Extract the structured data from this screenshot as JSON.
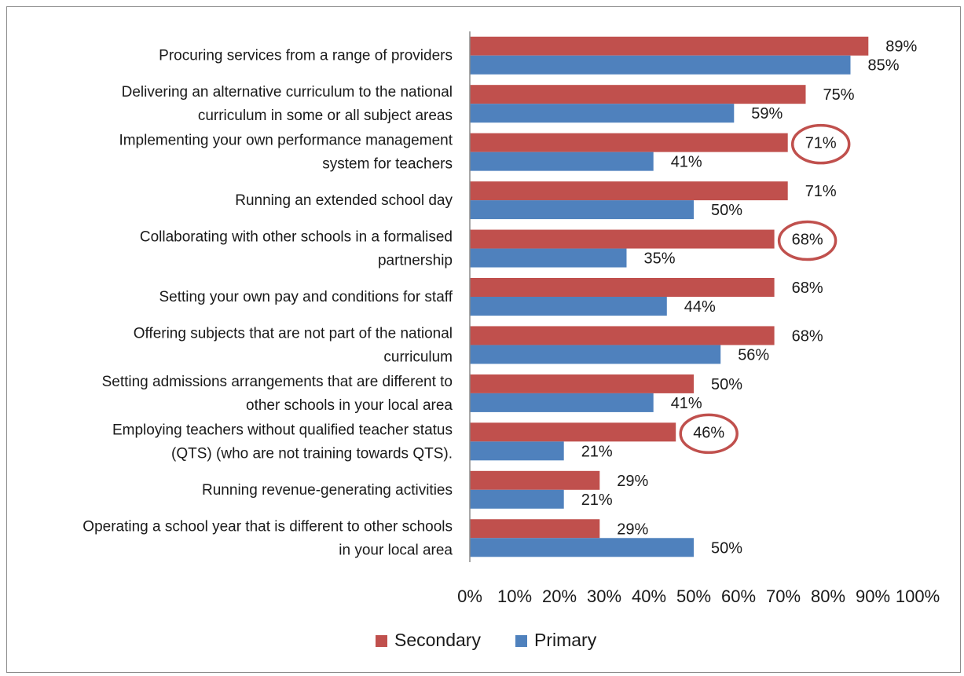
{
  "chart_data": {
    "type": "bar",
    "orientation": "horizontal",
    "title": "",
    "xlabel": "",
    "ylabel": "",
    "xlim": [
      0,
      100
    ],
    "grid": false,
    "legend_position": "bottom",
    "x_ticks": [
      "0%",
      "10%",
      "20%",
      "30%",
      "40%",
      "50%",
      "60%",
      "70%",
      "80%",
      "90%",
      "100%"
    ],
    "categories": [
      [
        "Procuring services from a range of providers"
      ],
      [
        "Delivering an alternative curriculum to the national",
        "curriculum in some or all subject areas"
      ],
      [
        "Implementing your own performance management",
        "system for teachers"
      ],
      [
        "Running an extended school day"
      ],
      [
        "Collaborating with other schools in a formalised",
        "partnership"
      ],
      [
        "Setting your own pay and conditions for staff"
      ],
      [
        "Offering subjects that are not part of the national",
        "curriculum"
      ],
      [
        "Setting admissions arrangements that are different to",
        "other schools in your local area"
      ],
      [
        "Employing teachers without qualified teacher status",
        "(QTS) (who are not training towards QTS)."
      ],
      [
        "Running revenue-generating activities"
      ],
      [
        "Operating a school year that is different to other schools",
        "in your local area"
      ]
    ],
    "series": [
      {
        "name": "Secondary",
        "color": "#c0504d",
        "values": [
          89,
          75,
          71,
          71,
          68,
          68,
          68,
          50,
          46,
          29,
          29
        ],
        "labels": [
          "89%",
          "75%",
          "71%",
          "71%",
          "68%",
          "68%",
          "68%",
          "50%",
          "46%",
          "29%",
          "29%"
        ]
      },
      {
        "name": "Primary",
        "color": "#4f81bd",
        "values": [
          85,
          59,
          41,
          50,
          35,
          44,
          56,
          41,
          21,
          21,
          50
        ],
        "labels": [
          "85%",
          "59%",
          "41%",
          "50%",
          "35%",
          "44%",
          "56%",
          "41%",
          "21%",
          "21%",
          "50%"
        ]
      }
    ],
    "highlighted": [
      {
        "series": "Secondary",
        "category_index": 2,
        "color": "#c0504d"
      },
      {
        "series": "Secondary",
        "category_index": 4,
        "color": "#c0504d"
      },
      {
        "series": "Secondary",
        "category_index": 8,
        "color": "#c0504d"
      }
    ]
  }
}
